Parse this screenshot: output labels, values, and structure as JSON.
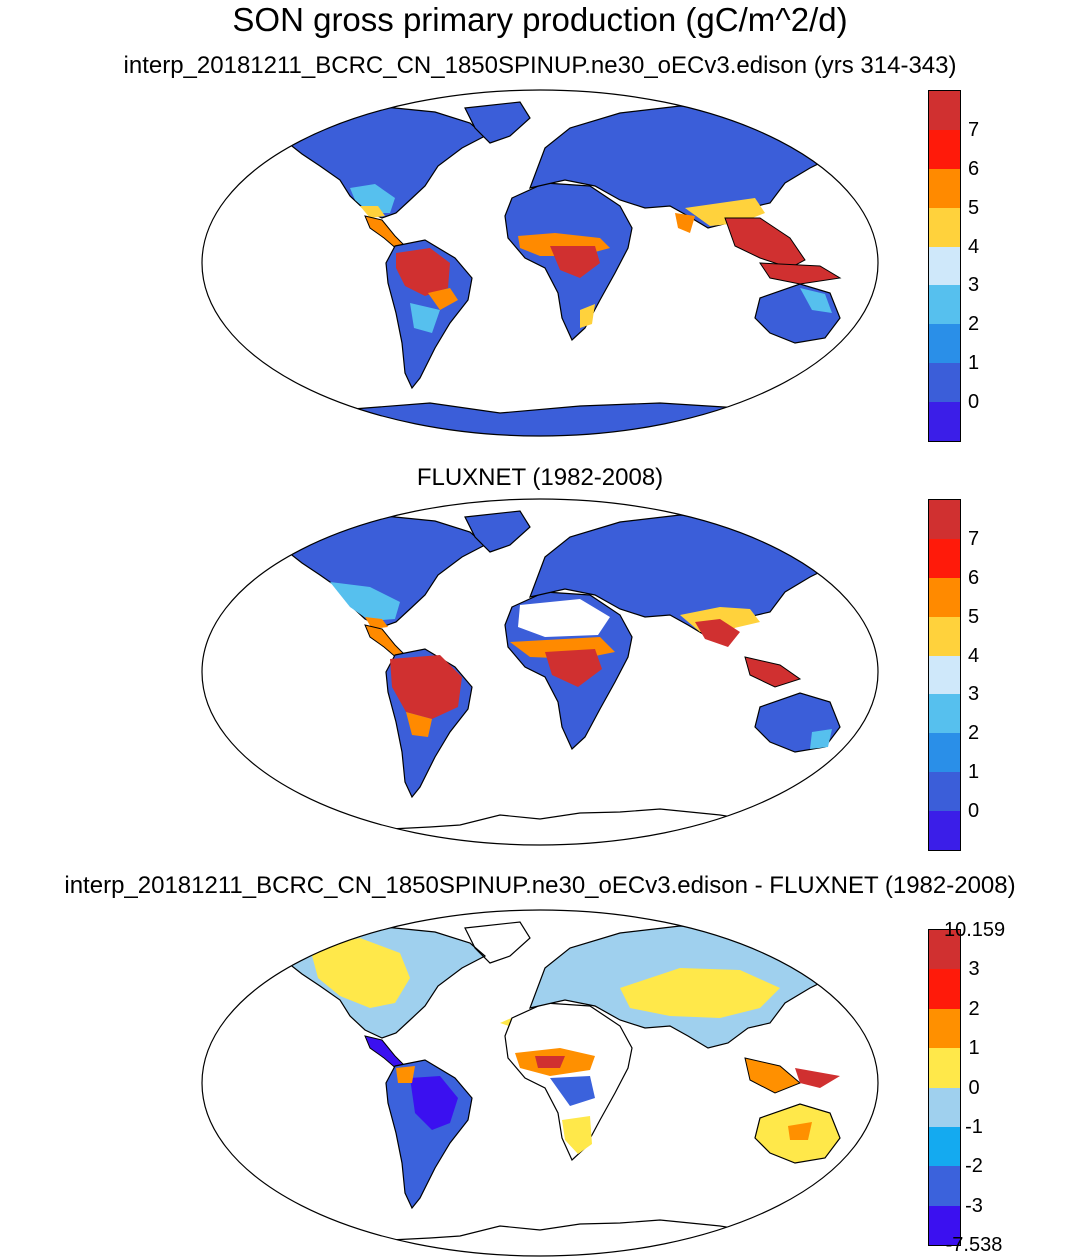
{
  "figure": {
    "title": "SON gross primary production (gC/m^2/d)"
  },
  "colors": {
    "land_outline": "#000000",
    "ocean": "#ffffff"
  },
  "panels": [
    {
      "title": "interp_20181211_BCRC_CN_1850SPINUP.ne30_oECv3.edison (yrs 314-343)",
      "colorbar": {
        "colors": [
          "#d03030",
          "#ff1a0a",
          "#ff8a00",
          "#ffd23c",
          "#cfe8fa",
          "#56c0ee",
          "#2a8fe8",
          "#3b5ed9",
          "#3b1ee8"
        ],
        "labels": [
          "7",
          "6",
          "5",
          "4",
          "3",
          "2",
          "1",
          "0"
        ]
      }
    },
    {
      "title": "FLUXNET (1982-2008)",
      "colorbar": {
        "colors": [
          "#d03030",
          "#ff1a0a",
          "#ff8a00",
          "#ffd23c",
          "#cfe8fa",
          "#56c0ee",
          "#2a8fe8",
          "#3b5ed9",
          "#3b1ee8"
        ],
        "labels": [
          "7",
          "6",
          "5",
          "4",
          "3",
          "2",
          "1",
          "0"
        ]
      }
    },
    {
      "title": "interp_20181211_BCRC_CN_1850SPINUP.ne30_oECv3.edison - FLUXNET (1982-2008)",
      "colorbar": {
        "colors": [
          "#d03030",
          "#ff1a0a",
          "#ff9000",
          "#ffe84a",
          "#9fd0ee",
          "#14aaf0",
          "#3b62dc",
          "#3b10f0"
        ],
        "labels": [
          "10.159",
          "3",
          "2",
          "1",
          "0",
          "-1",
          "-2",
          "-3",
          "-7.538"
        ]
      }
    }
  ]
}
